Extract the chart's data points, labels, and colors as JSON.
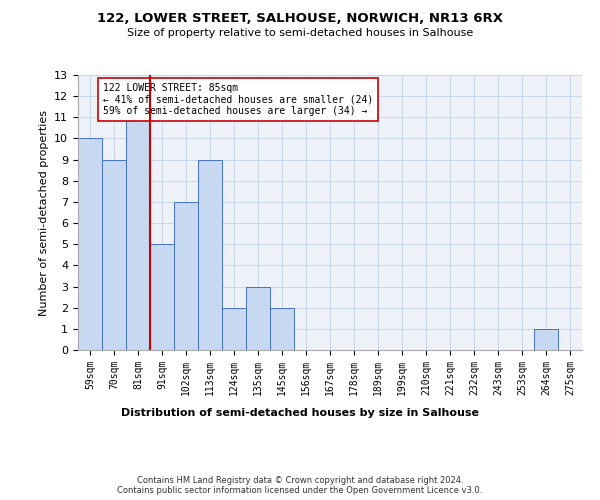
{
  "title": "122, LOWER STREET, SALHOUSE, NORWICH, NR13 6RX",
  "subtitle": "Size of property relative to semi-detached houses in Salhouse",
  "xlabel_bottom": "Distribution of semi-detached houses by size in Salhouse",
  "ylabel": "Number of semi-detached properties",
  "footer": "Contains HM Land Registry data © Crown copyright and database right 2024.\nContains public sector information licensed under the Open Government Licence v3.0.",
  "bin_labels": [
    "59sqm",
    "70sqm",
    "81sqm",
    "91sqm",
    "102sqm",
    "113sqm",
    "124sqm",
    "135sqm",
    "145sqm",
    "156sqm",
    "167sqm",
    "178sqm",
    "189sqm",
    "199sqm",
    "210sqm",
    "221sqm",
    "232sqm",
    "243sqm",
    "253sqm",
    "264sqm",
    "275sqm"
  ],
  "bar_heights": [
    10,
    9,
    11,
    5,
    7,
    9,
    2,
    3,
    2,
    0,
    0,
    0,
    0,
    0,
    0,
    0,
    0,
    0,
    0,
    1,
    0
  ],
  "bar_color": "#c6d9f0",
  "bar_edge_color": "#4472c4",
  "vline_x_index": 2,
  "vline_color": "#cc0000",
  "annotation_title": "122 LOWER STREET: 85sqm",
  "annotation_line1": "← 41% of semi-detached houses are smaller (24)",
  "annotation_line2": "59% of semi-detached houses are larger (34) →",
  "annotation_box_color": "#ffffff",
  "annotation_box_edge": "#cc0000",
  "ylim": [
    0,
    13
  ],
  "yticks": [
    0,
    1,
    2,
    3,
    4,
    5,
    6,
    7,
    8,
    9,
    10,
    11,
    12,
    13
  ],
  "figsize": [
    6.0,
    5.0
  ],
  "dpi": 100
}
